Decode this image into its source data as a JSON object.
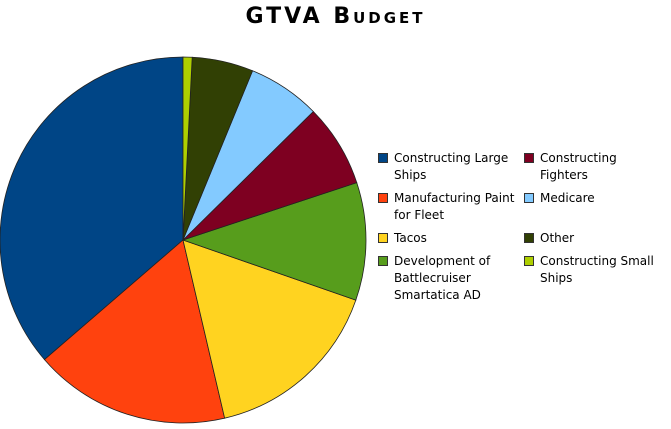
{
  "chart_data": {
    "type": "pie",
    "title": "GTVA Budget",
    "categories": [
      "Constructing Large Ships",
      "Manufacturing Paint for Fleet",
      "Tacos",
      "Development of Battlecruiser Smartatica AD",
      "Constructing Fighters",
      "Medicare",
      "Other",
      "Constructing Small Ships"
    ],
    "values": [
      36.3,
      17.3,
      16,
      10.4,
      7.3,
      6.4,
      5.4,
      0.8
    ],
    "colors": [
      "#004586",
      "#ff420e",
      "#ffd320",
      "#579d1c",
      "#7e0021",
      "#83caff",
      "#314004",
      "#aecf00"
    ],
    "direction": "counterclockwise",
    "legend": "right"
  }
}
